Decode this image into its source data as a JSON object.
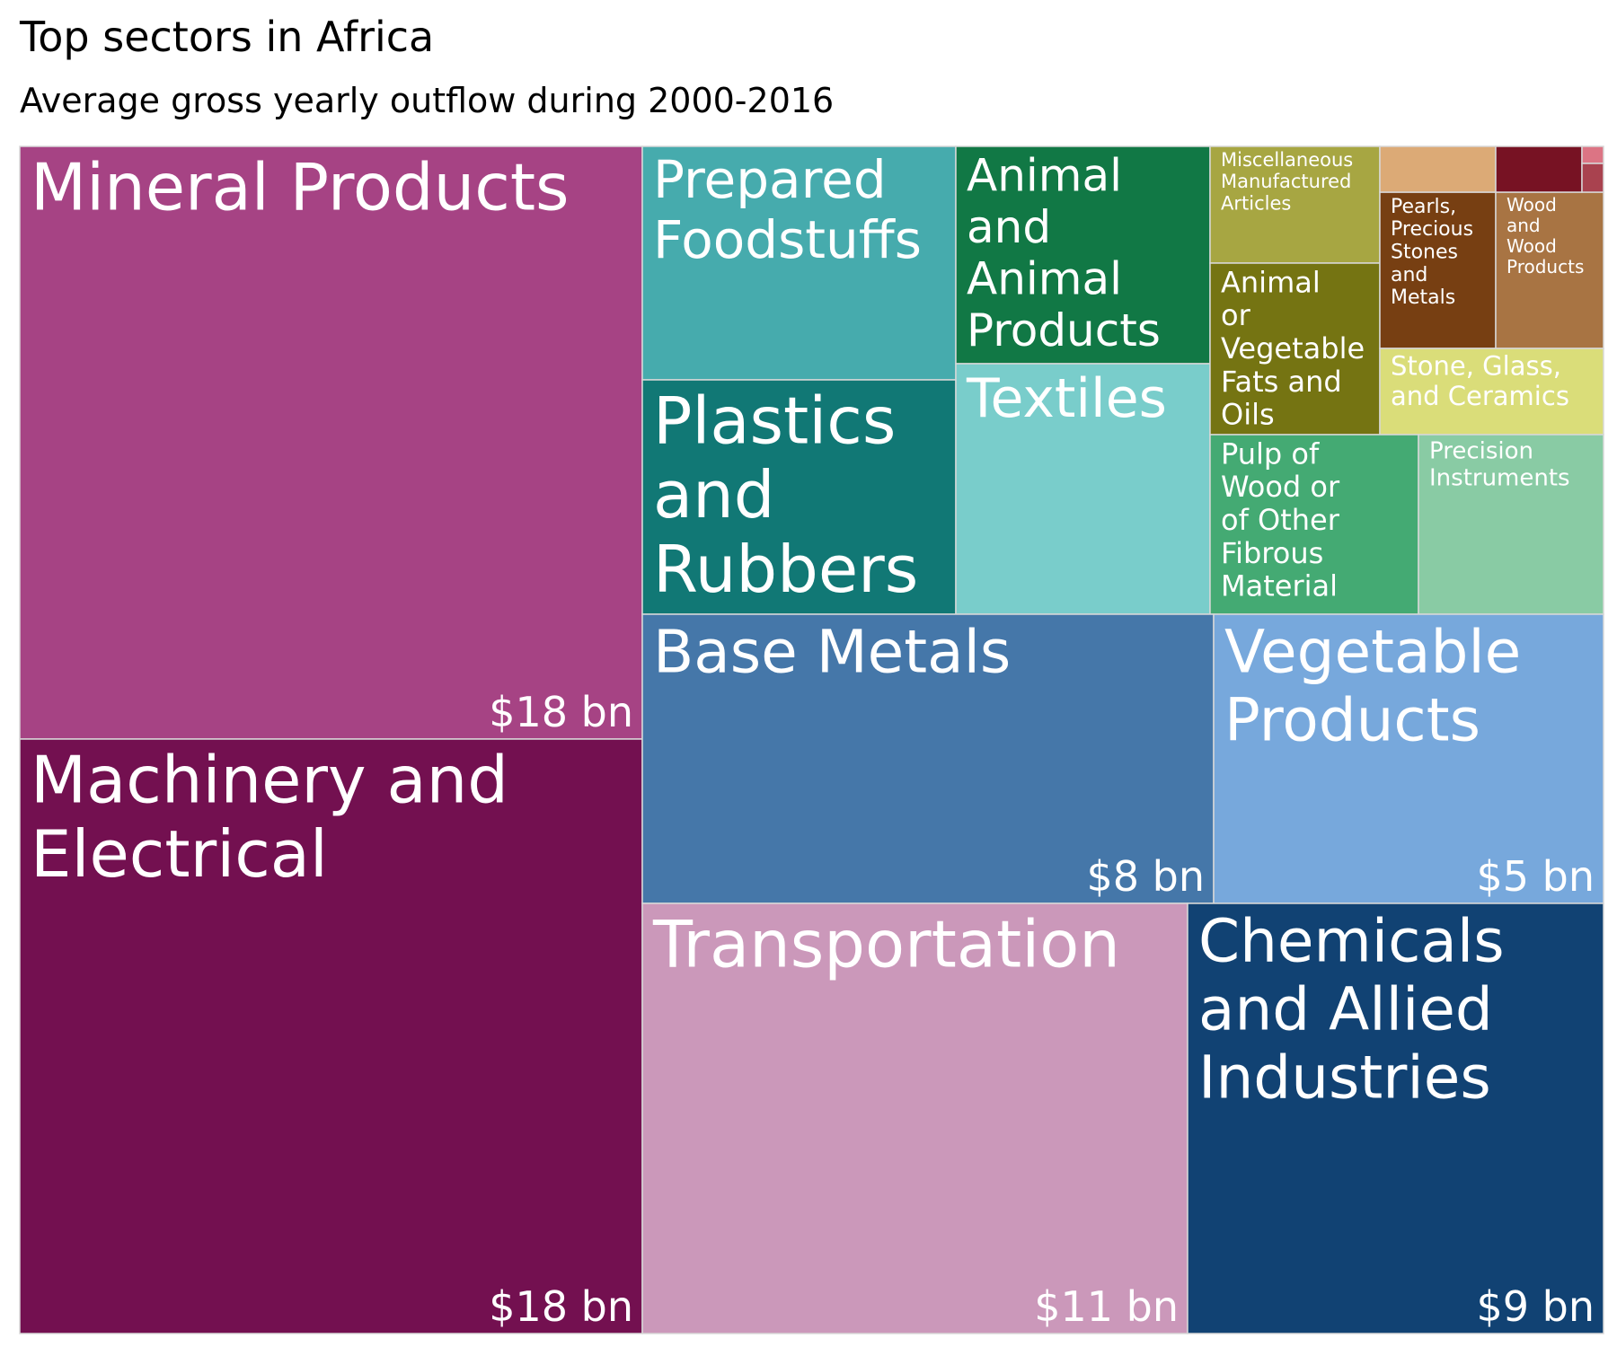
{
  "chart_data": {
    "type": "treemap",
    "title": "Top sectors in Africa",
    "subtitle": "Average gross yearly outflow during 2000-2016",
    "units": "$ bn",
    "items": [
      {
        "name": "Mineral Products",
        "value": 18,
        "value_label": "$18 bn",
        "color": "#a64384"
      },
      {
        "name": "Machinery and Electrical",
        "value": 18,
        "value_label": "$18 bn",
        "color": "#731050"
      },
      {
        "name": "Prepared Foodstuffs",
        "value": 2.5,
        "color": "#46abad"
      },
      {
        "name": "Plastics and Rubbers",
        "value": 2.5,
        "color": "#117875"
      },
      {
        "name": "Animal and Animal Products",
        "value": 1.9,
        "color": "#117845"
      },
      {
        "name": "Textiles",
        "value": 2.3,
        "color": "#79cdcb"
      },
      {
        "name": "Miscellaneous Manufactured Articles",
        "value": 0.7,
        "color": "#a7a642"
      },
      {
        "name": "Animal or Vegetable Fats and Oils",
        "value": 0.9,
        "color": "#757412"
      },
      {
        "name": "Pearls, Precious Stones and Metals",
        "value": 0.5,
        "color": "#773f12"
      },
      {
        "name": "Wood and Wood Products",
        "value": 0.4,
        "color": "#a87443"
      },
      {
        "name": "Stone, Glass, and Ceramics",
        "value": 0.5,
        "color": "#dadd79"
      },
      {
        "name": "Pulp of Wood or of Other Fibrous Material",
        "value": 1.1,
        "color": "#44aa73"
      },
      {
        "name": "Precision Instruments",
        "value": 0.9,
        "color": "#89cba4"
      },
      {
        "name": "Base Metals",
        "value": 8,
        "value_label": "$8 bn",
        "color": "#4577a9"
      },
      {
        "name": "Vegetable Products",
        "value": 5,
        "value_label": "$5 bn",
        "color": "#77a8dc"
      },
      {
        "name": "Transportation",
        "value": 11,
        "value_label": "$11 bn",
        "color": "#cb98ba"
      },
      {
        "name": "Chemicals and Allied Industries",
        "value": 9,
        "value_label": "$9 bn",
        "color": "#114273"
      },
      {
        "name": "",
        "value": 0.2,
        "color": "#dcaa76"
      },
      {
        "name": "",
        "value": 0.1,
        "color": "#771223"
      },
      {
        "name": "",
        "value": 0.01,
        "color": "#dc7484"
      },
      {
        "name": "",
        "value": 0.01,
        "color": "#a9424f"
      }
    ]
  }
}
